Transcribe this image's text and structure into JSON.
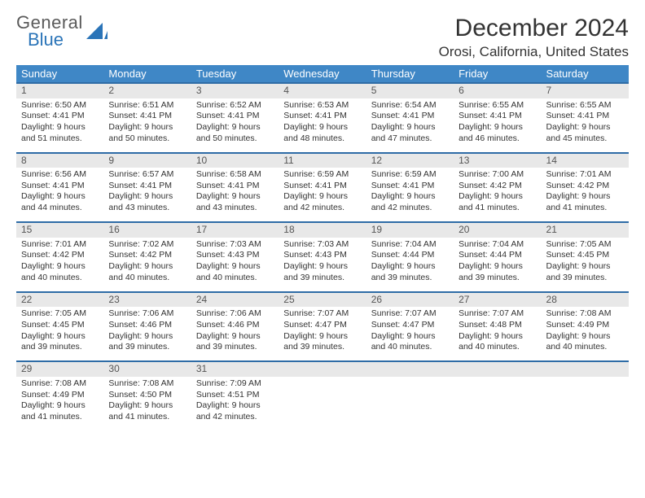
{
  "logo": {
    "textTop": "General",
    "textBottom": "Blue"
  },
  "header": {
    "monthTitle": "December 2024",
    "location": "Orosi, California, United States"
  },
  "colors": {
    "headerBg": "#3f87c6",
    "headerText": "#ffffff",
    "rowBorder": "#2e6ca6",
    "dayNumBg": "#e8e8e8",
    "logoBlue": "#2a74b8"
  },
  "dayNames": [
    "Sunday",
    "Monday",
    "Tuesday",
    "Wednesday",
    "Thursday",
    "Friday",
    "Saturday"
  ],
  "weeks": [
    [
      {
        "n": "1",
        "sr": "Sunrise: 6:50 AM",
        "ss": "Sunset: 4:41 PM",
        "d1": "Daylight: 9 hours",
        "d2": "and 51 minutes."
      },
      {
        "n": "2",
        "sr": "Sunrise: 6:51 AM",
        "ss": "Sunset: 4:41 PM",
        "d1": "Daylight: 9 hours",
        "d2": "and 50 minutes."
      },
      {
        "n": "3",
        "sr": "Sunrise: 6:52 AM",
        "ss": "Sunset: 4:41 PM",
        "d1": "Daylight: 9 hours",
        "d2": "and 50 minutes."
      },
      {
        "n": "4",
        "sr": "Sunrise: 6:53 AM",
        "ss": "Sunset: 4:41 PM",
        "d1": "Daylight: 9 hours",
        "d2": "and 48 minutes."
      },
      {
        "n": "5",
        "sr": "Sunrise: 6:54 AM",
        "ss": "Sunset: 4:41 PM",
        "d1": "Daylight: 9 hours",
        "d2": "and 47 minutes."
      },
      {
        "n": "6",
        "sr": "Sunrise: 6:55 AM",
        "ss": "Sunset: 4:41 PM",
        "d1": "Daylight: 9 hours",
        "d2": "and 46 minutes."
      },
      {
        "n": "7",
        "sr": "Sunrise: 6:55 AM",
        "ss": "Sunset: 4:41 PM",
        "d1": "Daylight: 9 hours",
        "d2": "and 45 minutes."
      }
    ],
    [
      {
        "n": "8",
        "sr": "Sunrise: 6:56 AM",
        "ss": "Sunset: 4:41 PM",
        "d1": "Daylight: 9 hours",
        "d2": "and 44 minutes."
      },
      {
        "n": "9",
        "sr": "Sunrise: 6:57 AM",
        "ss": "Sunset: 4:41 PM",
        "d1": "Daylight: 9 hours",
        "d2": "and 43 minutes."
      },
      {
        "n": "10",
        "sr": "Sunrise: 6:58 AM",
        "ss": "Sunset: 4:41 PM",
        "d1": "Daylight: 9 hours",
        "d2": "and 43 minutes."
      },
      {
        "n": "11",
        "sr": "Sunrise: 6:59 AM",
        "ss": "Sunset: 4:41 PM",
        "d1": "Daylight: 9 hours",
        "d2": "and 42 minutes."
      },
      {
        "n": "12",
        "sr": "Sunrise: 6:59 AM",
        "ss": "Sunset: 4:41 PM",
        "d1": "Daylight: 9 hours",
        "d2": "and 42 minutes."
      },
      {
        "n": "13",
        "sr": "Sunrise: 7:00 AM",
        "ss": "Sunset: 4:42 PM",
        "d1": "Daylight: 9 hours",
        "d2": "and 41 minutes."
      },
      {
        "n": "14",
        "sr": "Sunrise: 7:01 AM",
        "ss": "Sunset: 4:42 PM",
        "d1": "Daylight: 9 hours",
        "d2": "and 41 minutes."
      }
    ],
    [
      {
        "n": "15",
        "sr": "Sunrise: 7:01 AM",
        "ss": "Sunset: 4:42 PM",
        "d1": "Daylight: 9 hours",
        "d2": "and 40 minutes."
      },
      {
        "n": "16",
        "sr": "Sunrise: 7:02 AM",
        "ss": "Sunset: 4:42 PM",
        "d1": "Daylight: 9 hours",
        "d2": "and 40 minutes."
      },
      {
        "n": "17",
        "sr": "Sunrise: 7:03 AM",
        "ss": "Sunset: 4:43 PM",
        "d1": "Daylight: 9 hours",
        "d2": "and 40 minutes."
      },
      {
        "n": "18",
        "sr": "Sunrise: 7:03 AM",
        "ss": "Sunset: 4:43 PM",
        "d1": "Daylight: 9 hours",
        "d2": "and 39 minutes."
      },
      {
        "n": "19",
        "sr": "Sunrise: 7:04 AM",
        "ss": "Sunset: 4:44 PM",
        "d1": "Daylight: 9 hours",
        "d2": "and 39 minutes."
      },
      {
        "n": "20",
        "sr": "Sunrise: 7:04 AM",
        "ss": "Sunset: 4:44 PM",
        "d1": "Daylight: 9 hours",
        "d2": "and 39 minutes."
      },
      {
        "n": "21",
        "sr": "Sunrise: 7:05 AM",
        "ss": "Sunset: 4:45 PM",
        "d1": "Daylight: 9 hours",
        "d2": "and 39 minutes."
      }
    ],
    [
      {
        "n": "22",
        "sr": "Sunrise: 7:05 AM",
        "ss": "Sunset: 4:45 PM",
        "d1": "Daylight: 9 hours",
        "d2": "and 39 minutes."
      },
      {
        "n": "23",
        "sr": "Sunrise: 7:06 AM",
        "ss": "Sunset: 4:46 PM",
        "d1": "Daylight: 9 hours",
        "d2": "and 39 minutes."
      },
      {
        "n": "24",
        "sr": "Sunrise: 7:06 AM",
        "ss": "Sunset: 4:46 PM",
        "d1": "Daylight: 9 hours",
        "d2": "and 39 minutes."
      },
      {
        "n": "25",
        "sr": "Sunrise: 7:07 AM",
        "ss": "Sunset: 4:47 PM",
        "d1": "Daylight: 9 hours",
        "d2": "and 39 minutes."
      },
      {
        "n": "26",
        "sr": "Sunrise: 7:07 AM",
        "ss": "Sunset: 4:47 PM",
        "d1": "Daylight: 9 hours",
        "d2": "and 40 minutes."
      },
      {
        "n": "27",
        "sr": "Sunrise: 7:07 AM",
        "ss": "Sunset: 4:48 PM",
        "d1": "Daylight: 9 hours",
        "d2": "and 40 minutes."
      },
      {
        "n": "28",
        "sr": "Sunrise: 7:08 AM",
        "ss": "Sunset: 4:49 PM",
        "d1": "Daylight: 9 hours",
        "d2": "and 40 minutes."
      }
    ],
    [
      {
        "n": "29",
        "sr": "Sunrise: 7:08 AM",
        "ss": "Sunset: 4:49 PM",
        "d1": "Daylight: 9 hours",
        "d2": "and 41 minutes."
      },
      {
        "n": "30",
        "sr": "Sunrise: 7:08 AM",
        "ss": "Sunset: 4:50 PM",
        "d1": "Daylight: 9 hours",
        "d2": "and 41 minutes."
      },
      {
        "n": "31",
        "sr": "Sunrise: 7:09 AM",
        "ss": "Sunset: 4:51 PM",
        "d1": "Daylight: 9 hours",
        "d2": "and 42 minutes."
      },
      {
        "empty": true
      },
      {
        "empty": true
      },
      {
        "empty": true
      },
      {
        "empty": true
      }
    ]
  ]
}
